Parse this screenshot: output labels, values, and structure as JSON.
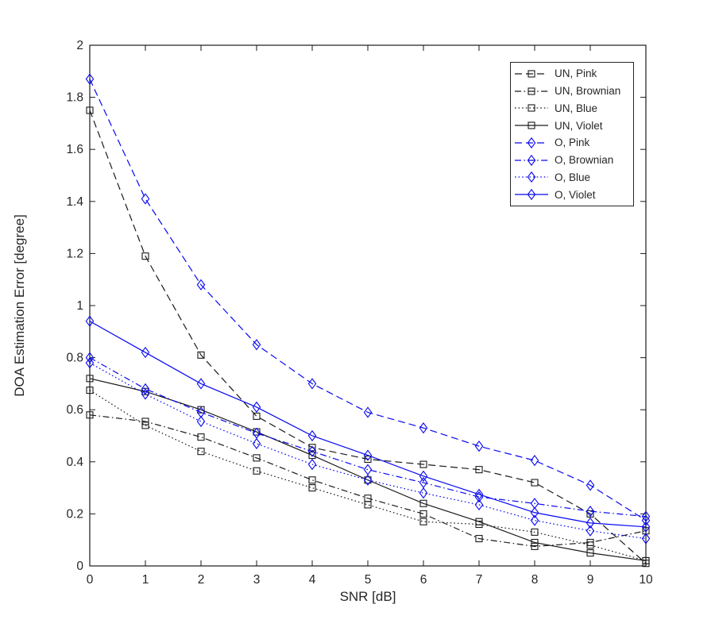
{
  "figure": {
    "background": "#ffffff",
    "axes_color": "#1a1a1a",
    "tick_label_color": "#262626"
  },
  "chart_data": {
    "type": "line",
    "title": "",
    "xlabel": "SNR [dB]",
    "ylabel": "DOA Estimation Error [degree]",
    "xlim": [
      0,
      10
    ],
    "ylim": [
      0,
      2
    ],
    "grid": false,
    "legend_position": "top-right",
    "x_ticks": [
      "0",
      "1",
      "2",
      "3",
      "4",
      "5",
      "6",
      "7",
      "8",
      "9",
      "10"
    ],
    "y_ticks": [
      "0",
      "0.2",
      "0.4",
      "0.6",
      "0.8",
      "1",
      "1.2",
      "1.4",
      "1.6",
      "1.8",
      "2"
    ],
    "x": [
      0,
      1,
      2,
      3,
      4,
      5,
      6,
      7,
      8,
      9,
      10
    ],
    "series": [
      {
        "name": "UN, Pink",
        "color": "#1a1a1a",
        "linestyle": "dashed",
        "marker": "square",
        "values": [
          1.75,
          1.19,
          0.81,
          0.575,
          0.455,
          0.41,
          0.39,
          0.37,
          0.32,
          0.2,
          0.01
        ]
      },
      {
        "name": "UN, Brownian",
        "color": "#1a1a1a",
        "linestyle": "dashdot",
        "marker": "square",
        "values": [
          0.58,
          0.555,
          0.495,
          0.415,
          0.33,
          0.26,
          0.2,
          0.105,
          0.075,
          0.09,
          0.135
        ]
      },
      {
        "name": "UN, Blue",
        "color": "#1a1a1a",
        "linestyle": "dotted",
        "marker": "square",
        "values": [
          0.675,
          0.54,
          0.44,
          0.365,
          0.3,
          0.235,
          0.17,
          0.16,
          0.13,
          0.08,
          0.02
        ]
      },
      {
        "name": "UN, Violet",
        "color": "#1a1a1a",
        "linestyle": "solid",
        "marker": "square",
        "values": [
          0.72,
          0.67,
          0.6,
          0.515,
          0.425,
          0.33,
          0.24,
          0.17,
          0.09,
          0.05,
          0.02
        ]
      },
      {
        "name": "O, Pink",
        "color": "#0808f0",
        "linestyle": "dashed",
        "marker": "diamond",
        "values": [
          1.87,
          1.41,
          1.08,
          0.85,
          0.7,
          0.59,
          0.53,
          0.46,
          0.405,
          0.31,
          0.175
        ]
      },
      {
        "name": "O, Brownian",
        "color": "#0808f0",
        "linestyle": "dashdot",
        "marker": "diamond",
        "values": [
          0.8,
          0.68,
          0.59,
          0.51,
          0.44,
          0.37,
          0.32,
          0.265,
          0.24,
          0.21,
          0.19
        ]
      },
      {
        "name": "O, Blue",
        "color": "#0808f0",
        "linestyle": "dotted",
        "marker": "diamond",
        "values": [
          0.78,
          0.66,
          0.555,
          0.47,
          0.39,
          0.33,
          0.28,
          0.235,
          0.175,
          0.135,
          0.105
        ]
      },
      {
        "name": "O, Violet",
        "color": "#0808f0",
        "linestyle": "solid",
        "marker": "diamond",
        "values": [
          0.94,
          0.82,
          0.7,
          0.61,
          0.5,
          0.425,
          0.345,
          0.275,
          0.205,
          0.165,
          0.15
        ]
      }
    ]
  }
}
